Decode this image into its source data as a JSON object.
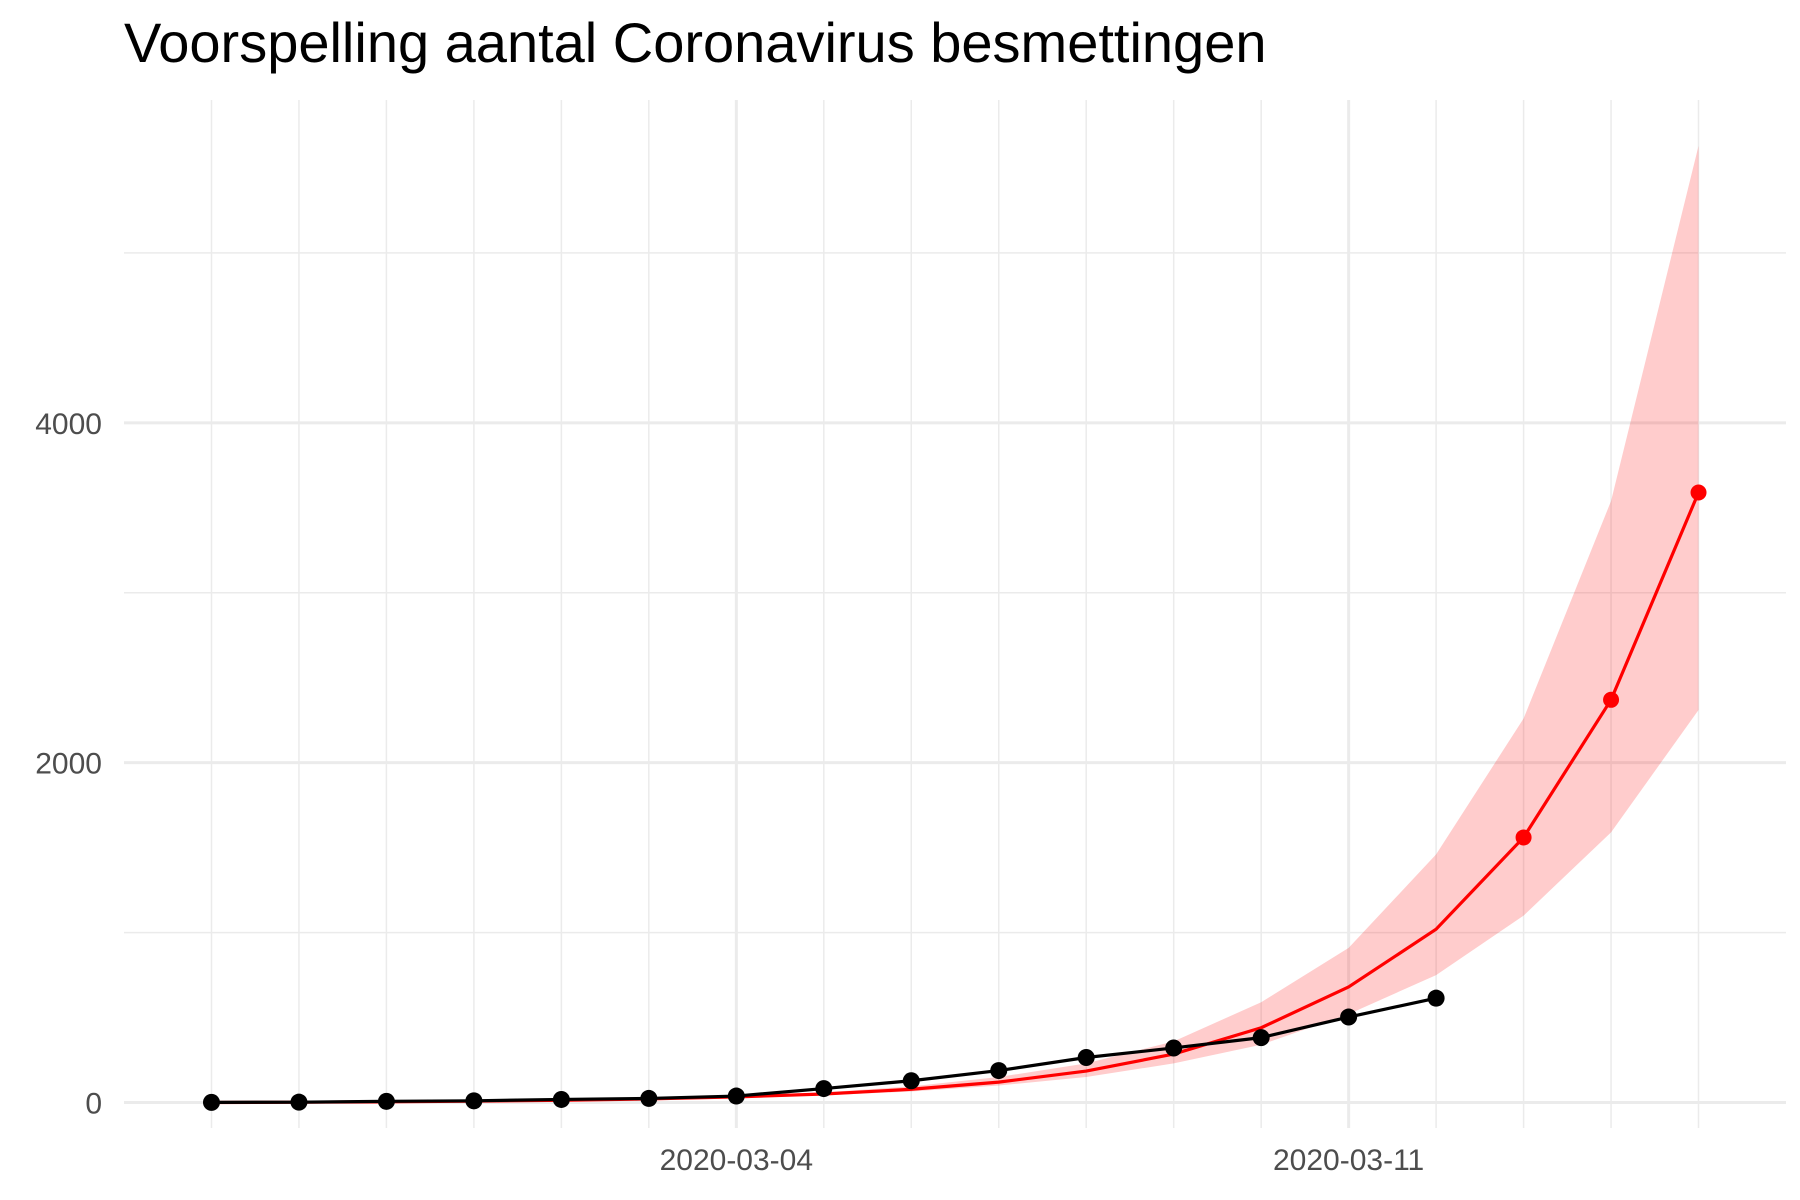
{
  "chart_data": {
    "type": "line",
    "title": "Voorspelling aantal Coronavirus besmettingen",
    "xlabel": "",
    "ylabel": "",
    "x": [
      "2020-02-27",
      "2020-02-28",
      "2020-02-29",
      "2020-03-01",
      "2020-03-02",
      "2020-03-03",
      "2020-03-04",
      "2020-03-05",
      "2020-03-06",
      "2020-03-07",
      "2020-03-08",
      "2020-03-09",
      "2020-03-10",
      "2020-03-11",
      "2020-03-12",
      "2020-03-13",
      "2020-03-14",
      "2020-03-15"
    ],
    "xlim": [
      "2020-02-26",
      "2020-03-16"
    ],
    "ylim": [
      -150,
      5900
    ],
    "x_ticks": [
      "2020-03-04",
      "2020-03-11"
    ],
    "y_ticks": [
      0,
      2000,
      4000
    ],
    "grid": true,
    "legend": "none",
    "series": [
      {
        "role": "forecast_band",
        "color": "#ff0000",
        "x": [
          "2020-02-27",
          "2020-02-28",
          "2020-02-29",
          "2020-03-01",
          "2020-03-02",
          "2020-03-03",
          "2020-03-04",
          "2020-03-05",
          "2020-03-06",
          "2020-03-07",
          "2020-03-08",
          "2020-03-09",
          "2020-03-10",
          "2020-03-11",
          "2020-03-12",
          "2020-03-13",
          "2020-03-14",
          "2020-03-15"
        ],
        "lower": [
          0,
          1,
          3,
          6,
          11,
          18,
          28,
          42,
          65,
          100,
          150,
          230,
          340,
          520,
          750,
          1100,
          1590,
          2310
        ],
        "upper": [
          0,
          2,
          5,
          10,
          16,
          26,
          40,
          60,
          95,
          150,
          230,
          360,
          590,
          910,
          1460,
          2260,
          3540,
          5630
        ]
      },
      {
        "role": "forecast",
        "color": "#ff0000",
        "x": [
          "2020-02-27",
          "2020-02-28",
          "2020-02-29",
          "2020-03-01",
          "2020-03-02",
          "2020-03-03",
          "2020-03-04",
          "2020-03-05",
          "2020-03-06",
          "2020-03-07",
          "2020-03-08",
          "2020-03-09",
          "2020-03-10",
          "2020-03-11",
          "2020-03-12",
          "2020-03-13",
          "2020-03-14",
          "2020-03-15"
        ],
        "values": [
          0,
          2,
          4,
          8,
          13,
          21,
          33,
          50,
          78,
          120,
          185,
          285,
          440,
          680,
          1020,
          1560,
          2370,
          3590
        ],
        "points_from": "2020-03-13"
      },
      {
        "role": "observed",
        "color": "#000000",
        "x": [
          "2020-02-27",
          "2020-02-28",
          "2020-02-29",
          "2020-03-01",
          "2020-03-02",
          "2020-03-03",
          "2020-03-04",
          "2020-03-05",
          "2020-03-06",
          "2020-03-07",
          "2020-03-08",
          "2020-03-09",
          "2020-03-10",
          "2020-03-11",
          "2020-03-12"
        ],
        "values": [
          1,
          2,
          7,
          10,
          18,
          24,
          38,
          82,
          128,
          188,
          265,
          321,
          382,
          503,
          614
        ]
      }
    ]
  }
}
